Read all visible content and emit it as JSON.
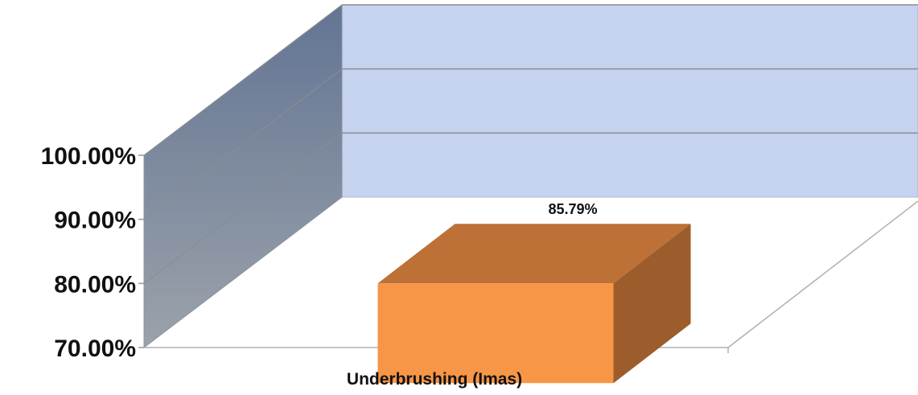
{
  "chart_data": {
    "type": "bar",
    "style": "3d-column",
    "categories": [
      "Underbrushing (Imas)"
    ],
    "series": [
      {
        "values": [
          85.79
        ]
      }
    ],
    "data_labels": [
      "85.79%"
    ],
    "ylim": [
      70,
      100
    ],
    "yticks": [
      70,
      80,
      90,
      100
    ],
    "ytick_labels": [
      "70.00%",
      "80.00%",
      "90.00%",
      "100.00%"
    ],
    "grid": true,
    "legend": "none",
    "colors": {
      "bar_front": "#F79646",
      "bar_top": "#BD7136",
      "bar_side": "#9C5C2C",
      "back_wall": "#C5D3EE",
      "side_wall_top": "#637594",
      "side_wall_bottom": "#9BA2AA",
      "gridline": "#8c8c8c",
      "floor_edge": "#b0b0b0"
    }
  }
}
